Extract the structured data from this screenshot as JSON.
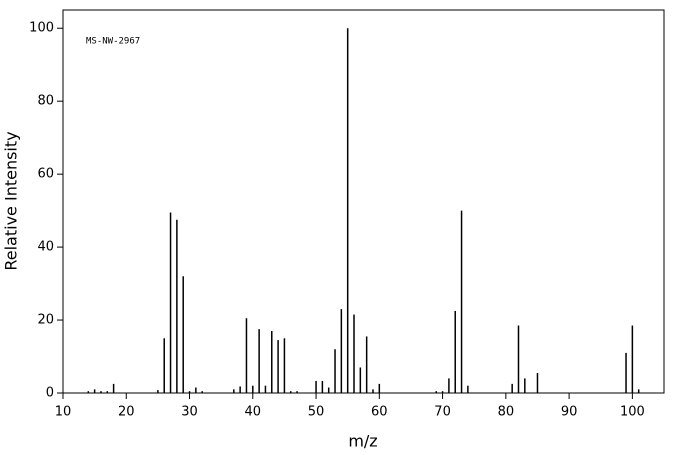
{
  "chart_data": {
    "type": "bar",
    "annotation": "MS-NW-2967",
    "x_label": "m/z",
    "y_label": "Relative Intensity",
    "x": [
      14,
      15,
      16,
      17,
      18,
      25,
      26,
      27,
      28,
      29,
      30,
      31,
      32,
      37,
      38,
      39,
      40,
      41,
      42,
      43,
      44,
      45,
      46,
      47,
      50,
      51,
      52,
      53,
      54,
      55,
      56,
      57,
      58,
      59,
      60,
      69,
      70,
      71,
      72,
      73,
      74,
      81,
      82,
      83,
      85,
      99,
      100,
      101
    ],
    "values": [
      0.5,
      1,
      0.5,
      0.5,
      2.5,
      0.8,
      15,
      49.5,
      47.5,
      32,
      0.5,
      1.5,
      0.5,
      1,
      1.8,
      20.5,
      2,
      17.5,
      2,
      17,
      14.5,
      15,
      0.5,
      0.5,
      3.3,
      3.3,
      1.5,
      12,
      23,
      100,
      21.5,
      7,
      15.5,
      1,
      2.5,
      0.5,
      0.5,
      4,
      22.5,
      50,
      2,
      2.5,
      18.5,
      4,
      5.5,
      11,
      18.5,
      1
    ],
    "color": "#000000",
    "xlim": [
      10,
      105
    ],
    "xticks": [
      10,
      20,
      30,
      40,
      50,
      60,
      70,
      80,
      90,
      100
    ],
    "ylim": [
      0,
      105
    ],
    "yticks": [
      0,
      20,
      40,
      60,
      80,
      100
    ]
  }
}
